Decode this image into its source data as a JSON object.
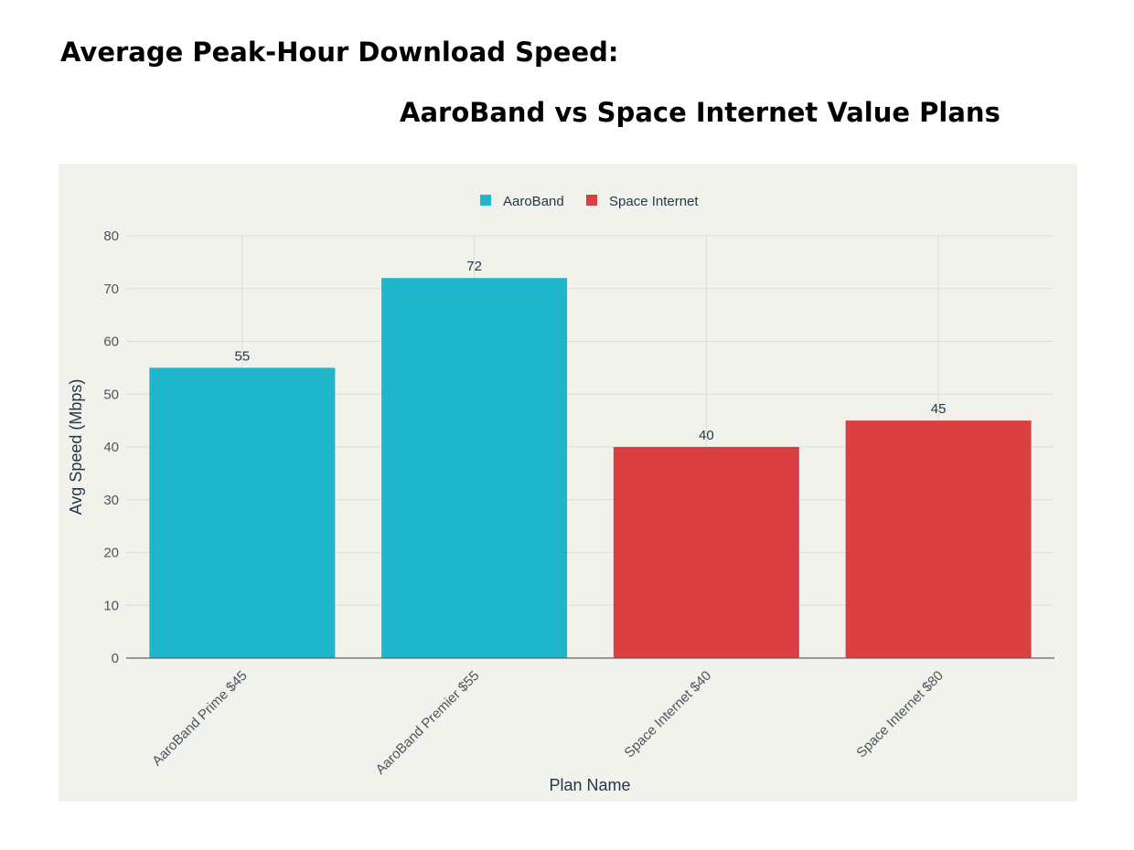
{
  "chart_data": {
    "type": "bar",
    "title": "Average Peak-Hour Download Speed:",
    "subtitle": "AaroBand vs Space Internet Value Plans",
    "categories": [
      "AaroBand Prime $45",
      "AaroBand Premier $55",
      "Space Internet $40",
      "Space Internet $80"
    ],
    "values": [
      55,
      72,
      40,
      45
    ],
    "category_series": [
      "AaroBand",
      "AaroBand",
      "Space Internet",
      "Space Internet"
    ],
    "series": [
      {
        "name": "AaroBand",
        "color": "#1fb6cc"
      },
      {
        "name": "Space Internet",
        "color": "#da4042"
      }
    ],
    "xlabel": "Plan Name",
    "ylabel": "Avg Speed (Mbps)",
    "ylim": [
      0,
      80
    ],
    "yticks": [
      0,
      10,
      20,
      30,
      40,
      50,
      60,
      70,
      80
    ],
    "grid": true,
    "legend": "top-center",
    "data_labels": true
  }
}
